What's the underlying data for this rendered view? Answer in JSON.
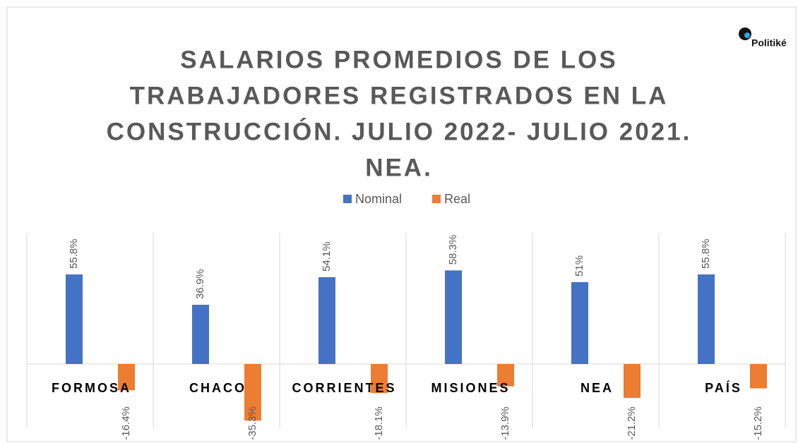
{
  "chart_data": {
    "type": "bar",
    "title": [
      "SALARIOS PROMEDIOS DE LOS",
      "TRABAJADORES REGISTRADOS EN LA",
      "CONSTRUCCIÓN. JULIO 2022- JULIO 2021.",
      "NEA."
    ],
    "logo": "Politiké",
    "categories": [
      "FORMOSA",
      "CHACO",
      "CORRIENTES",
      "MISIONES",
      "NEA",
      "PAÍS"
    ],
    "series": [
      {
        "name": "Nominal",
        "color": "#4472c4",
        "values": [
          55.8,
          36.9,
          54.1,
          58.3,
          51,
          55.8
        ],
        "value_labels": [
          "55.8%",
          "36.9%",
          "54.1%",
          "58.3%",
          "51%",
          "55.8%"
        ]
      },
      {
        "name": "Real",
        "color": "#ed7d31",
        "values": [
          -16.4,
          -35.3,
          -18.1,
          -13.9,
          -21.2,
          -15.2
        ],
        "value_labels": [
          "-16.4%",
          "-35.3%",
          "-18.1%",
          "-13.9%",
          "-21.2%",
          "-15.2%"
        ]
      }
    ],
    "ylim": [
      -40,
      80
    ]
  }
}
